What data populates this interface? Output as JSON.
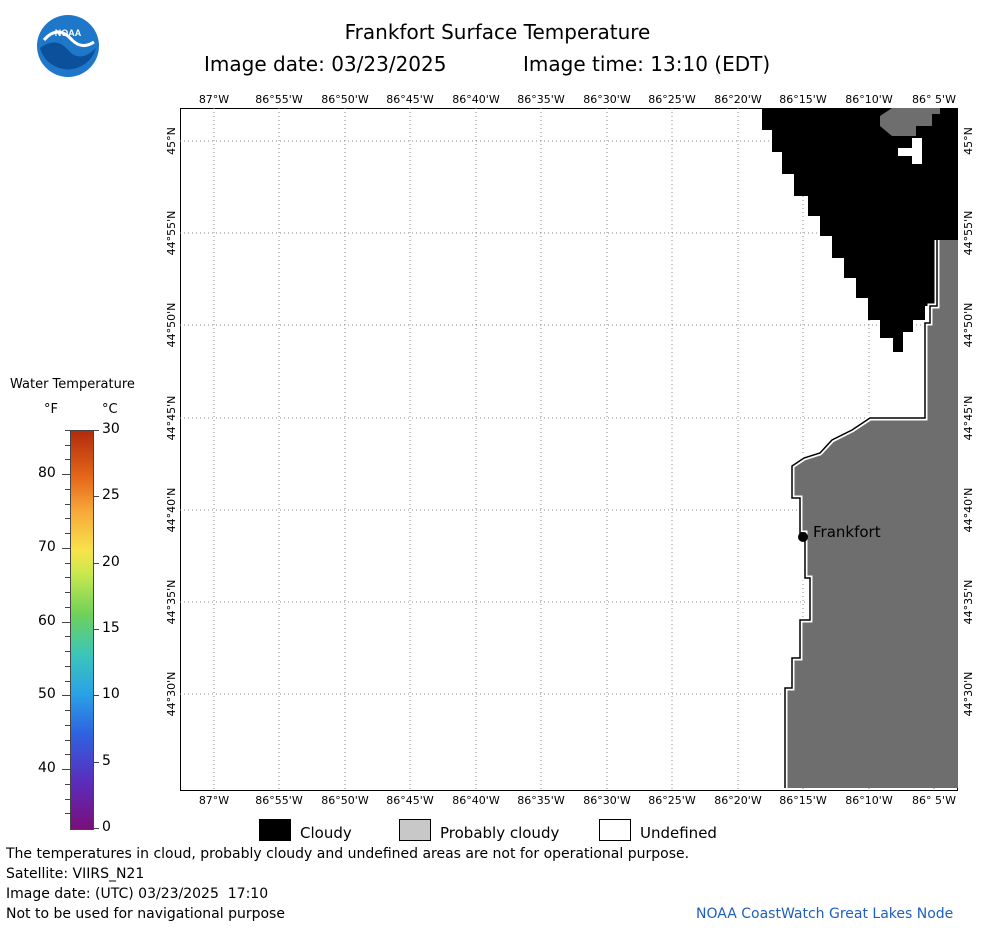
{
  "header": {
    "title": "Frankfort Surface Temperature",
    "image_date_label": "Image date: 03/23/2025",
    "image_time_label": "Image time: 13:10 (EDT)"
  },
  "logo": {
    "text": "NOAA"
  },
  "map": {
    "lon_labels": [
      "87°W",
      "86°55'W",
      "86°50'W",
      "86°45'W",
      "86°40'W",
      "86°35'W",
      "86°30'W",
      "86°25'W",
      "86°20'W",
      "86°15'W",
      "86°10'W",
      "86° 5'W"
    ],
    "lat_labels": [
      "45°N",
      "44°55'N",
      "44°50'N",
      "44°45'N",
      "44°40'N",
      "44°35'N",
      "44°30'N"
    ],
    "city": "Frankfort",
    "colors": {
      "cloudy": "#000000",
      "probably_cloudy": "#6e6e6e",
      "undefined": "#ffffff",
      "grid": "#888888"
    }
  },
  "colorbar": {
    "title": "Water Temperature",
    "unit_f": "°F",
    "unit_c": "°C",
    "f_ticks": [
      "80",
      "70",
      "60",
      "50",
      "40"
    ],
    "c_ticks": [
      "30",
      "25",
      "20",
      "15",
      "10",
      "5",
      "0"
    ]
  },
  "legend": {
    "cloudy": "Cloudy",
    "probably_cloudy": "Probably cloudy",
    "undefined": "Undefined"
  },
  "footer": {
    "note": "The temperatures in cloud, probably cloudy and undefined areas are not for operational purpose.",
    "satellite": "Satellite: VIIRS_N21",
    "image_date_utc": "Image date: (UTC) 03/23/2025  17:10",
    "navigation": "Not to be used for navigational purpose",
    "node": "NOAA CoastWatch Great Lakes Node"
  }
}
